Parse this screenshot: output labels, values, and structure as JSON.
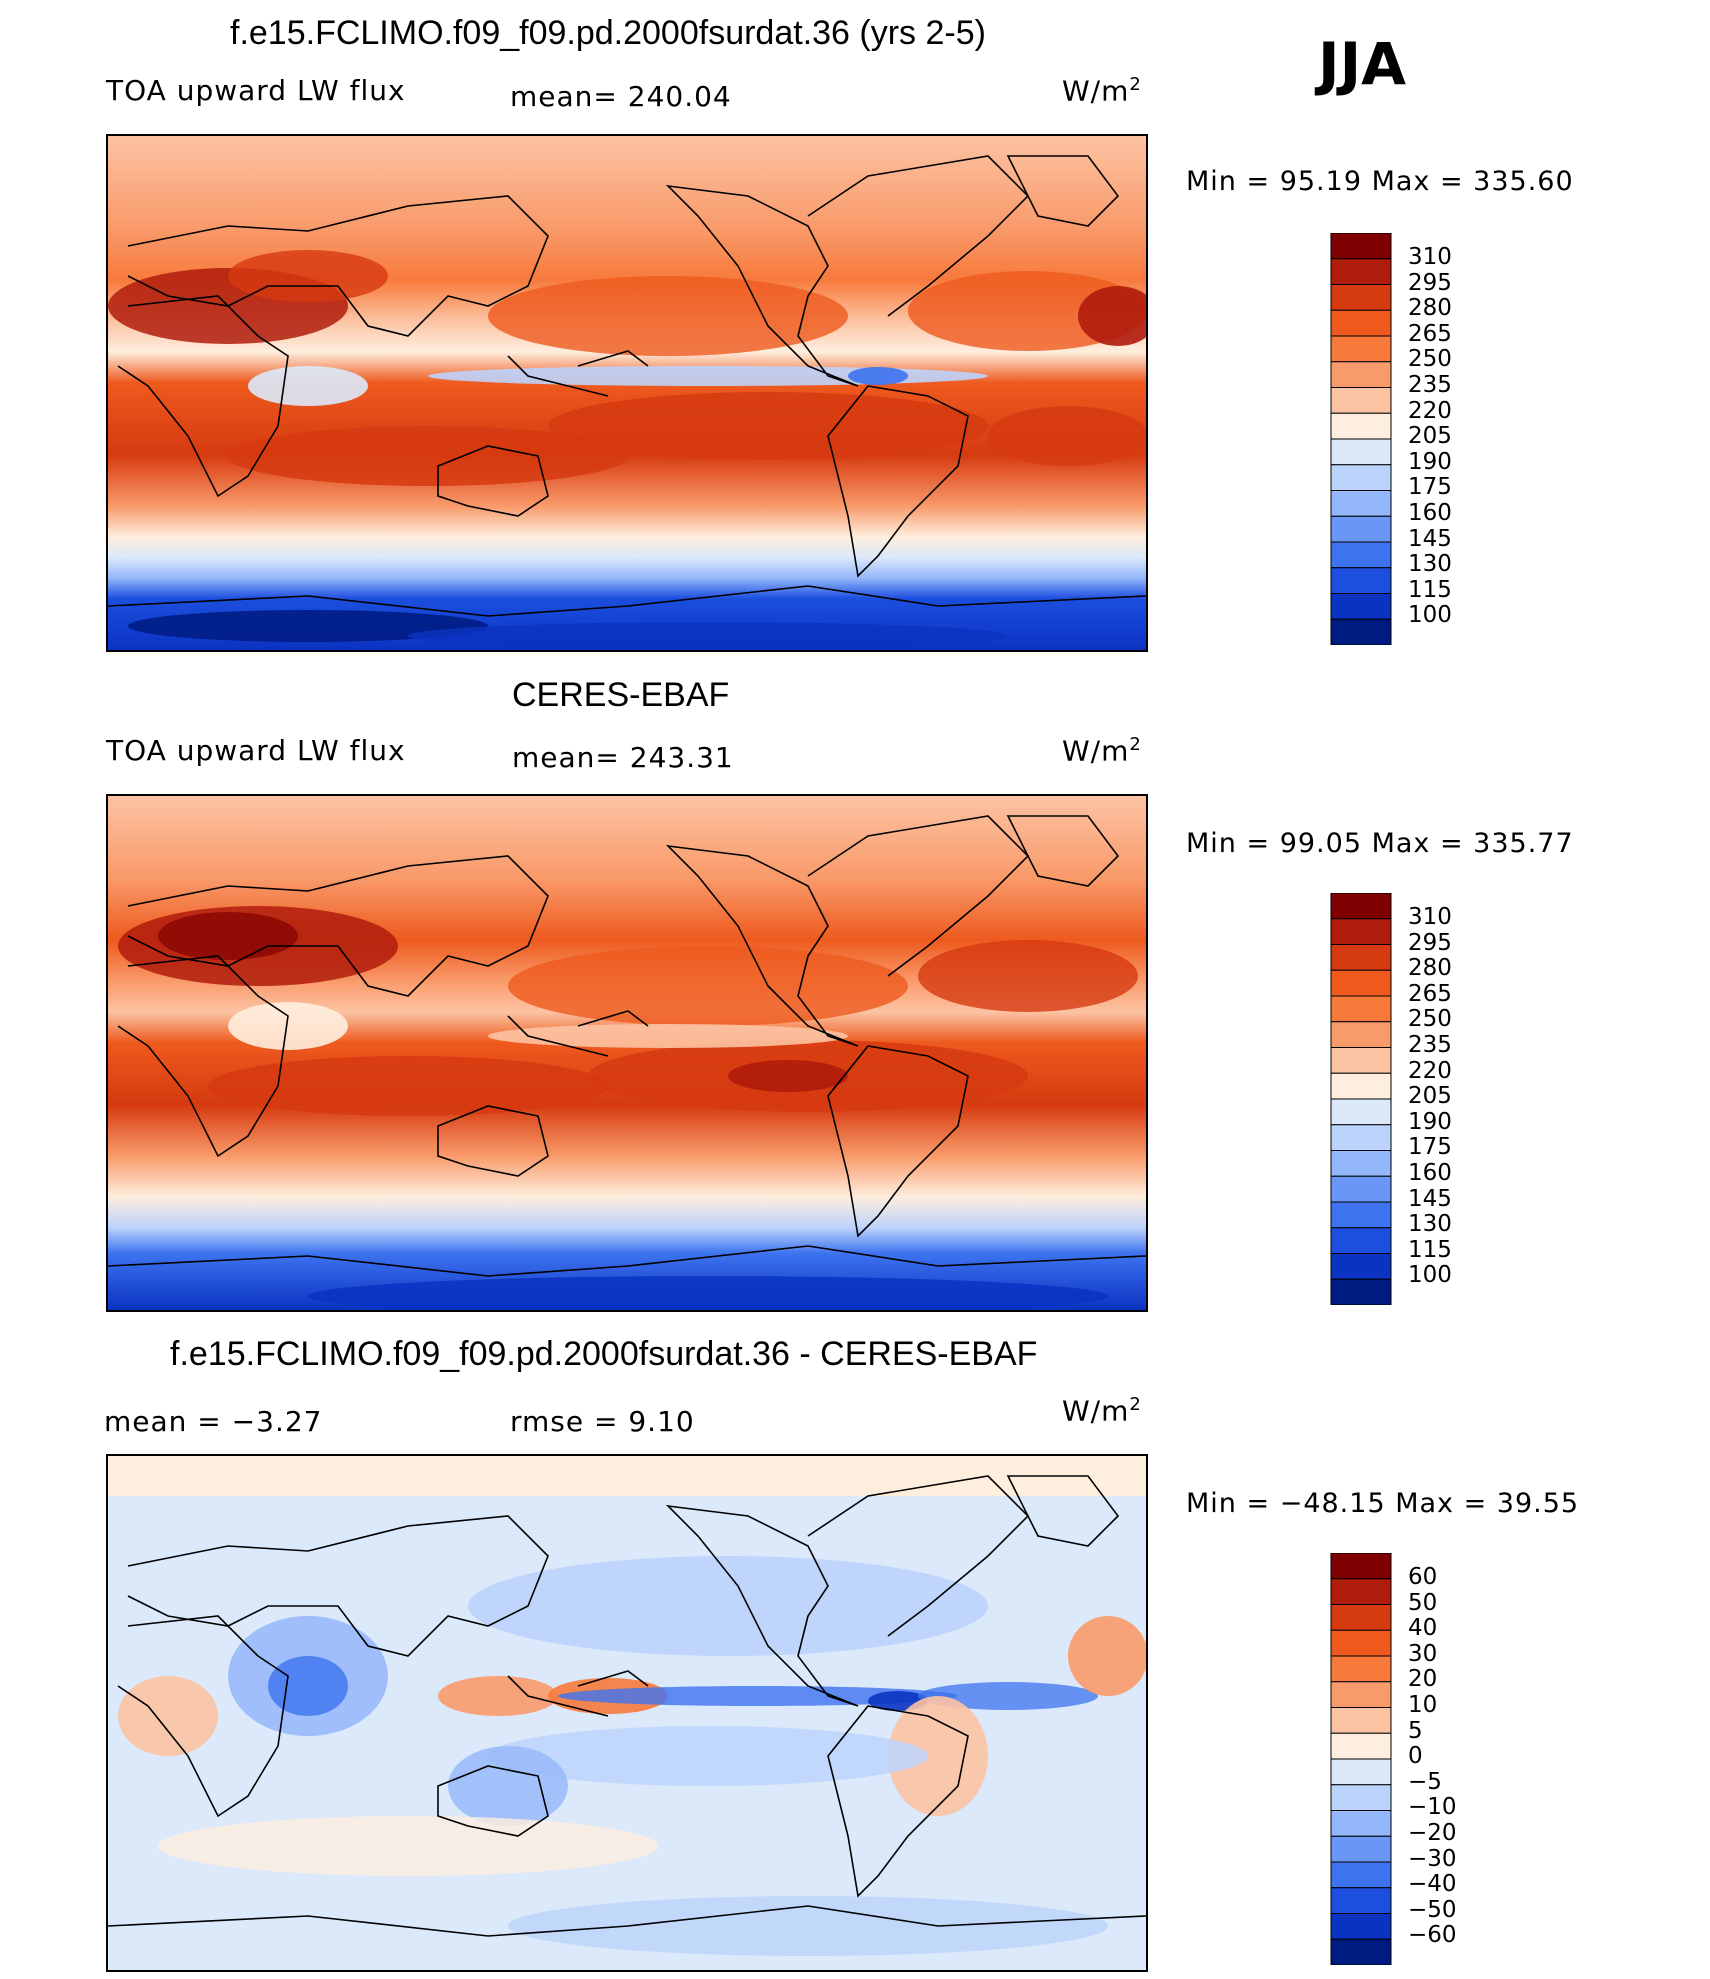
{
  "season": "JJA",
  "panels": [
    {
      "id": "model",
      "title": "f.e15.FCLIMO.f09_f09.pd.2000fsurdat.36 (yrs 2-5)",
      "variable": "TOA upward LW flux",
      "stat_text": "mean=  240.04",
      "unit_base": "W/m",
      "unit_exp": "2",
      "minmax": "Min  =    95.19  Max  =  335.60",
      "colorbar": {
        "levels": [
          "310",
          "295",
          "280",
          "265",
          "250",
          "235",
          "220",
          "205",
          "190",
          "175",
          "160",
          "145",
          "130",
          "115",
          "100"
        ],
        "colors": [
          "#7f0000",
          "#b01c0c",
          "#d63a10",
          "#ee5a1e",
          "#f77a3c",
          "#f99a6a",
          "#fcc3a3",
          "#feeede",
          "#dce9fb",
          "#bcd3fb",
          "#94b6fa",
          "#6a97f6",
          "#3d73ef",
          "#1c4fdf",
          "#0b33c2",
          "#001b80"
        ]
      }
    },
    {
      "id": "obs",
      "title": "CERES-EBAF",
      "variable": "TOA upward LW flux",
      "stat_text": "mean=  243.31",
      "unit_base": "W/m",
      "unit_exp": "2",
      "minmax": "Min  =    99.05  Max  =  335.77",
      "colorbar": {
        "levels": [
          "310",
          "295",
          "280",
          "265",
          "250",
          "235",
          "220",
          "205",
          "190",
          "175",
          "160",
          "145",
          "130",
          "115",
          "100"
        ],
        "colors": [
          "#7f0000",
          "#b01c0c",
          "#d63a10",
          "#ee5a1e",
          "#f77a3c",
          "#f99a6a",
          "#fcc3a3",
          "#feeede",
          "#dce9fb",
          "#bcd3fb",
          "#94b6fa",
          "#6a97f6",
          "#3d73ef",
          "#1c4fdf",
          "#0b33c2",
          "#001b80"
        ]
      }
    },
    {
      "id": "diff",
      "title": "f.e15.FCLIMO.f09_f09.pd.2000fsurdat.36 - CERES-EBAF",
      "mean_text": "mean  =    −3.27",
      "rmse_text": "rmse  =     9.10",
      "unit_base": "W/m",
      "unit_exp": "2",
      "minmax": "Min  =  −48.15  Max  =    39.55",
      "colorbar": {
        "levels": [
          "60",
          "50",
          "40",
          "30",
          "20",
          "10",
          "5",
          "0",
          "−5",
          "−10",
          "−20",
          "−30",
          "−40",
          "−50",
          "−60"
        ],
        "colors": [
          "#7f0000",
          "#b01c0c",
          "#d63a10",
          "#ee5a1e",
          "#f77a3c",
          "#f99a6a",
          "#fcc3a3",
          "#feeede",
          "#dce9fb",
          "#bcd3fb",
          "#94b6fa",
          "#6a97f6",
          "#3d73ef",
          "#1c4fdf",
          "#0b33c2",
          "#001b80"
        ]
      }
    }
  ]
}
